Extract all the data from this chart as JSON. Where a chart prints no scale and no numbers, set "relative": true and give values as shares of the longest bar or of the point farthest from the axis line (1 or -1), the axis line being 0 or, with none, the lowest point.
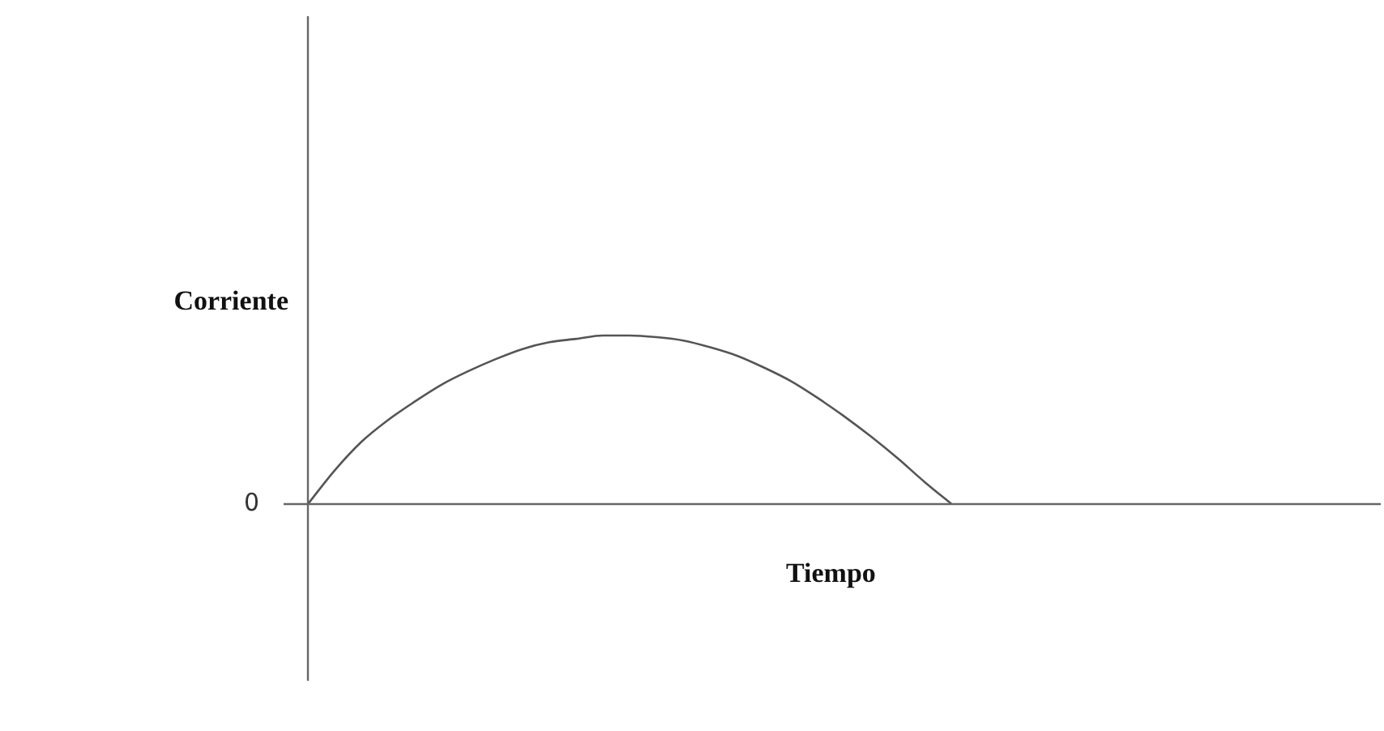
{
  "chart_data": {
    "type": "line",
    "relative": true,
    "xlabel": "Tiempo",
    "ylabel": "Corriente",
    "annotations": [
      "0"
    ],
    "categories": [
      null,
      null,
      null,
      null,
      null,
      null,
      null,
      null,
      null,
      null,
      null,
      null,
      null,
      null,
      null,
      null,
      null,
      null,
      null,
      null,
      null,
      null,
      null,
      null,
      null,
      null,
      null,
      null,
      null,
      null,
      null,
      null,
      null,
      null,
      null,
      null,
      null,
      null,
      null,
      null,
      null
    ],
    "color": "#555555",
    "marker": "none",
    "values": [
      0,
      0.2,
      0.37,
      0.5,
      0.61,
      0.71,
      0.79,
      0.86,
      0.92,
      0.96,
      0.98,
      1.0,
      1.0,
      0.99,
      0.97,
      0.93,
      0.88,
      0.81,
      0.73,
      0.63,
      0.52,
      0.4,
      0.27,
      0.13,
      0,
      null,
      null,
      null,
      null,
      null,
      null,
      null,
      null,
      null,
      null,
      null,
      null,
      null,
      null,
      null,
      null
    ]
  }
}
